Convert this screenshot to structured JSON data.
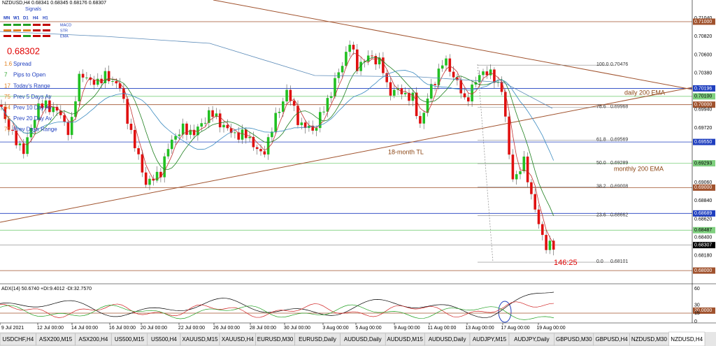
{
  "header": {
    "symbol_line": "NZDUSD,H4 0.68341 0.68345 0.68176 0.68307"
  },
  "signals": {
    "title": "Signals",
    "timeframes": [
      "MN",
      "W1",
      "D1",
      "H4",
      "H1"
    ],
    "indicators": [
      "MACD",
      "STR",
      "EMA"
    ]
  },
  "price": "0.68302",
  "stats": [
    {
      "value": 1.6,
      "label": "Spread"
    },
    {
      "value": 7,
      "label": "Pips to Open"
    },
    {
      "value": 17,
      "label": "Today's Range"
    },
    {
      "value": 75,
      "label": "Prev 5 Days Av"
    },
    {
      "value": 64,
      "label": "Prev 10 Day Av"
    },
    {
      "value": 75,
      "label": "Prev 20 Day Av"
    },
    {
      "value": 71,
      "label": "Prev Days Range"
    }
  ],
  "annotations": [
    "daily 200 EMA",
    "18-month TL",
    "monthly 200 EMA",
    "146:25"
  ],
  "fib_levels": [
    {
      "level": "100.0",
      "price": "0.70476"
    },
    {
      "level": "78.6",
      "price": "0.69968"
    },
    {
      "level": "61.8",
      "price": "0.69569"
    },
    {
      "level": "50.0",
      "price": "0.69289"
    },
    {
      "level": "38.2",
      "price": "0.69008"
    },
    {
      "level": "23.6",
      "price": "0.68662"
    },
    {
      "level": "0.0",
      "price": "0.68101"
    }
  ],
  "price_axis": [
    {
      "label": "0.71040"
    },
    {
      "label": "0.71000",
      "color": "#a0522d"
    },
    {
      "label": "0.70820"
    },
    {
      "label": "0.70600"
    },
    {
      "label": "0.70380"
    },
    {
      "label": "0.70196",
      "color": "#1f3fbf"
    },
    {
      "label": "0.70100",
      "color": "#7fd07f"
    },
    {
      "label": "0.70000",
      "color": "#a0522d"
    },
    {
      "label": "0.69940"
    },
    {
      "label": "0.69720"
    },
    {
      "label": "0.69550",
      "color": "#1f3fbf"
    },
    {
      "label": "0.69293",
      "color": "#7fd07f"
    },
    {
      "label": "0.69060"
    },
    {
      "label": "0.69000",
      "color": "#a0522d"
    },
    {
      "label": "0.68840"
    },
    {
      "label": "0.68689",
      "color": "#1f3fbf"
    },
    {
      "label": "0.68620"
    },
    {
      "label": "0.68487",
      "color": "#7fd07f"
    },
    {
      "label": "0.68400"
    },
    {
      "label": "0.68307",
      "color": "#000000"
    },
    {
      "label": "0.68180"
    },
    {
      "label": "0.68000",
      "color": "#a0522d"
    }
  ],
  "adx": {
    "header": "ADX(14) 50.6740 +DI:9.4012 -DI:32.7570",
    "axis": [
      "60",
      "30",
      "20.0000",
      "15",
      "0"
    ]
  },
  "dates": [
    "9 Jul 2021",
    "12 Jul 00:00",
    "14 Jul 00:00",
    "16 Jul 00:00",
    "20 Jul 00:00",
    "22 Jul 00:00",
    "26 Jul 00:00",
    "28 Jul 00:00",
    "30 Jul 00:00",
    "3 Aug 00:00",
    "5 Aug 00:00",
    "9 Aug 00:00",
    "11 Aug 00:00",
    "13 Aug 00:00",
    "17 Aug 00:00",
    "19 Aug 00:00"
  ],
  "tabs": [
    "USDCHF,H4",
    "ASX200,M15",
    "ASX200,H4",
    "US500,M15",
    "US500,H4",
    "XAUUSD,M15",
    "XAUUSD,H4",
    "EURUSD,M30",
    "EURUSD,Daily",
    "AUDUSD,Daily",
    "AUDUSD,M15",
    "AUDUSD,Daily",
    "AUDJPY,M15",
    "AUDJPY,Daily",
    "GBPUSD,M30",
    "GBPUSD,H4",
    "NZDUSD,M30",
    "NZDUSD,H4"
  ],
  "active_tab": 17
}
